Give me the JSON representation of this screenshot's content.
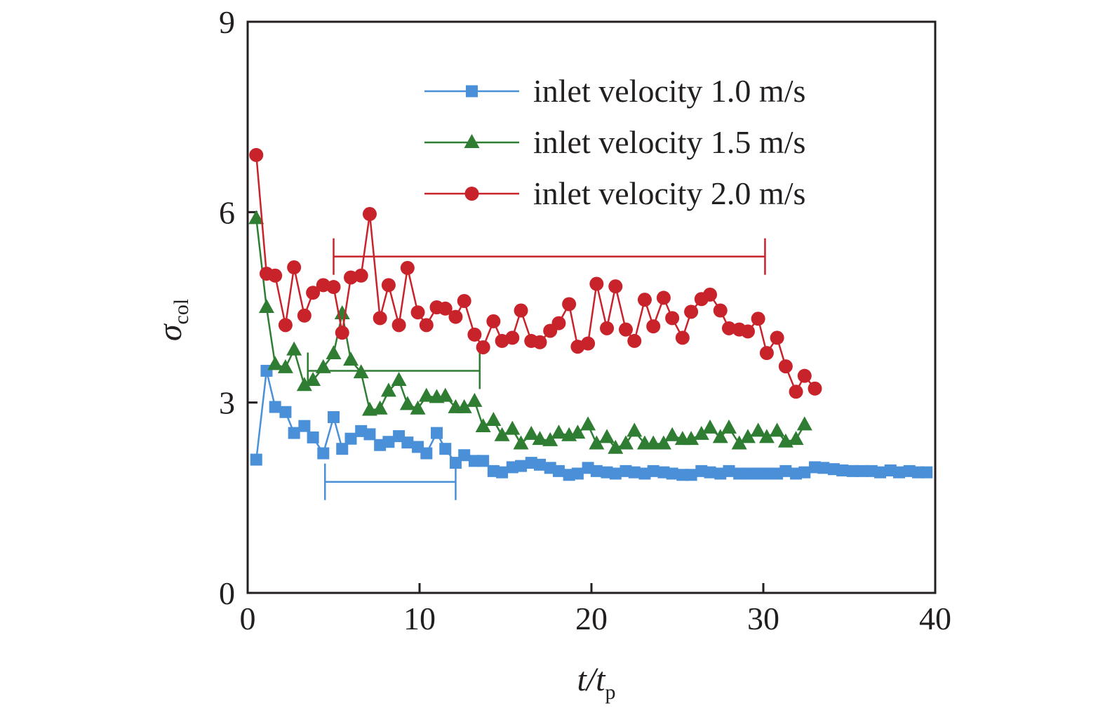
{
  "chart_data": {
    "type": "line",
    "title": "",
    "xlabel": {
      "main": "t/t",
      "sub": "p"
    },
    "ylabel": {
      "main": "σ",
      "sub": "col"
    },
    "xlim": [
      0,
      40
    ],
    "ylim": [
      0,
      9
    ],
    "xticks": [
      0,
      10,
      20,
      30,
      40
    ],
    "yticks": [
      0,
      3,
      6,
      9
    ],
    "grid": false,
    "legend_position": "top-right",
    "series": [
      {
        "name": "inlet velocity 1.0 m/s",
        "color": "#4a90d9",
        "marker": "square",
        "x": [
          0.5,
          1.1,
          1.6,
          2.2,
          2.7,
          3.3,
          3.8,
          4.4,
          5.0,
          5.5,
          6.0,
          6.6,
          7.1,
          7.7,
          8.2,
          8.8,
          9.3,
          9.9,
          10.4,
          11.0,
          11.5,
          12.1,
          12.6,
          13.2,
          13.7,
          14.3,
          14.8,
          15.4,
          15.9,
          16.5,
          17.0,
          17.6,
          18.1,
          18.7,
          19.2,
          19.8,
          20.3,
          20.9,
          21.4,
          22.0,
          22.5,
          23.1,
          23.6,
          24.2,
          24.7,
          25.3,
          25.8,
          26.4,
          26.9,
          27.5,
          28.0,
          28.6,
          29.1,
          29.7,
          30.2,
          30.8,
          31.3,
          31.9,
          32.4,
          33.0,
          33.5,
          34.1,
          34.6,
          35.2,
          35.7,
          36.3,
          36.8,
          37.4,
          37.9,
          38.5,
          39.0,
          39.5
        ],
        "y": [
          2.1,
          3.5,
          2.93,
          2.85,
          2.52,
          2.63,
          2.45,
          2.2,
          2.77,
          2.27,
          2.43,
          2.55,
          2.5,
          2.33,
          2.38,
          2.47,
          2.37,
          2.3,
          2.2,
          2.52,
          2.27,
          2.05,
          2.17,
          2.08,
          2.08,
          1.92,
          1.9,
          1.98,
          2.0,
          2.05,
          2.02,
          1.97,
          1.92,
          1.86,
          1.88,
          1.97,
          1.92,
          1.9,
          1.88,
          1.92,
          1.9,
          1.88,
          1.92,
          1.9,
          1.88,
          1.86,
          1.86,
          1.92,
          1.9,
          1.88,
          1.92,
          1.88,
          1.88,
          1.88,
          1.88,
          1.88,
          1.92,
          1.88,
          1.9,
          1.98,
          1.97,
          1.95,
          1.93,
          1.92,
          1.92,
          1.92,
          1.9,
          1.93,
          1.9,
          1.92,
          1.9,
          1.9
        ],
        "range_bar": {
          "x_start": 4.5,
          "x_end": 12.1,
          "y": 1.75
        }
      },
      {
        "name": "inlet velocity 1.5 m/s",
        "color": "#2e7d32",
        "marker": "triangle",
        "x": [
          0.5,
          1.1,
          1.6,
          2.2,
          2.7,
          3.3,
          3.8,
          4.4,
          5.0,
          5.5,
          6.0,
          6.6,
          7.1,
          7.7,
          8.2,
          8.8,
          9.3,
          9.9,
          10.4,
          11.0,
          11.5,
          12.1,
          12.6,
          13.2,
          13.7,
          14.3,
          14.8,
          15.4,
          15.9,
          16.5,
          17.0,
          17.6,
          18.1,
          18.7,
          19.2,
          19.8,
          20.3,
          20.9,
          21.4,
          22.0,
          22.5,
          23.1,
          23.6,
          24.2,
          24.7,
          25.3,
          25.8,
          26.4,
          26.9,
          27.5,
          28.0,
          28.6,
          29.1,
          29.7,
          30.2,
          30.8,
          31.3,
          31.9,
          32.4
        ],
        "y": [
          5.9,
          4.5,
          3.6,
          3.55,
          3.83,
          3.27,
          3.35,
          3.55,
          3.77,
          4.4,
          3.67,
          3.47,
          2.88,
          2.9,
          3.18,
          3.35,
          2.97,
          2.9,
          3.1,
          3.08,
          3.1,
          2.92,
          2.92,
          3.02,
          2.62,
          2.72,
          2.48,
          2.58,
          2.35,
          2.5,
          2.42,
          2.4,
          2.52,
          2.48,
          2.52,
          2.65,
          2.35,
          2.45,
          2.28,
          2.35,
          2.55,
          2.35,
          2.35,
          2.35,
          2.48,
          2.42,
          2.42,
          2.5,
          2.6,
          2.45,
          2.6,
          2.35,
          2.45,
          2.55,
          2.45,
          2.55,
          2.38,
          2.42,
          2.65
        ],
        "range_bar": {
          "x_start": 3.5,
          "x_end": 13.5,
          "y": 3.5
        }
      },
      {
        "name": "inlet velocity 2.0 m/s",
        "color": "#c8222a",
        "marker": "circle",
        "x": [
          0.5,
          1.1,
          1.6,
          2.2,
          2.7,
          3.3,
          3.8,
          4.4,
          5.0,
          5.5,
          6.0,
          6.6,
          7.1,
          7.7,
          8.2,
          8.8,
          9.3,
          9.9,
          10.4,
          11.0,
          11.5,
          12.1,
          12.6,
          13.2,
          13.7,
          14.3,
          14.8,
          15.4,
          15.9,
          16.5,
          17.0,
          17.6,
          18.1,
          18.7,
          19.2,
          19.8,
          20.3,
          20.9,
          21.4,
          22.0,
          22.5,
          23.1,
          23.6,
          24.2,
          24.7,
          25.3,
          25.8,
          26.4,
          26.9,
          27.5,
          28.0,
          28.6,
          29.1,
          29.7,
          30.2,
          30.8,
          31.3,
          31.9,
          32.4,
          33.0
        ],
        "y": [
          6.9,
          5.03,
          5.0,
          4.22,
          5.13,
          4.37,
          4.73,
          4.85,
          4.82,
          4.1,
          4.97,
          5.0,
          5.97,
          4.33,
          4.85,
          4.22,
          5.12,
          4.42,
          4.22,
          4.5,
          4.48,
          4.35,
          4.6,
          4.07,
          3.87,
          4.28,
          3.97,
          4.02,
          4.45,
          3.97,
          3.95,
          4.13,
          4.25,
          4.55,
          3.88,
          3.93,
          4.87,
          4.17,
          4.83,
          4.15,
          3.97,
          4.62,
          4.2,
          4.65,
          4.33,
          4.02,
          4.43,
          4.63,
          4.7,
          4.45,
          4.17,
          4.15,
          4.12,
          4.32,
          3.78,
          4.02,
          3.57,
          3.17,
          3.42,
          3.22
        ],
        "range_bar": {
          "x_start": 5.0,
          "x_end": 30.1,
          "y": 5.3
        }
      }
    ]
  }
}
